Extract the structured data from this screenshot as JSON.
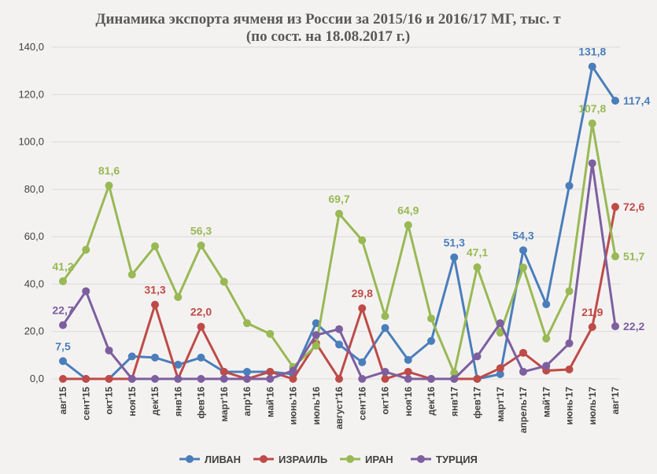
{
  "chart_data": {
    "type": "line",
    "title": "Динамика экспорта ячменя из России за  2015/16 и 2016/17 МГ, тыс. т",
    "subtitle": "(по сост. на 18.08.2017 г.)",
    "xlabel": "",
    "ylabel": "",
    "ylim": [
      0,
      140
    ],
    "yticks": [
      "0,0",
      "20,0",
      "40,0",
      "60,0",
      "80,0",
      "100,0",
      "120,0",
      "140,0"
    ],
    "grid": true,
    "legend_position": "bottom",
    "categories": [
      "авг'15",
      "сент'15",
      "окт'15",
      "ноя'15",
      "дек'15",
      "янв'16",
      "фев'16",
      "март'16",
      "апр'16",
      "май'16",
      "июнь'16",
      "июль'16",
      "август'16",
      "сент'16",
      "окт'16",
      "ноя'16",
      "дек'16",
      "янв'17",
      "фев'17",
      "март'17",
      "апрель'17",
      "май'17",
      "июнь'17",
      "июль'17",
      "авг'17"
    ],
    "series": [
      {
        "name": "ЛИВАН",
        "color": "#4a7ebb",
        "values": [
          7.5,
          0,
          0,
          9.5,
          9,
          6,
          9,
          3,
          3,
          3,
          2,
          23.5,
          14.5,
          7,
          21.5,
          8,
          16,
          51.3,
          0,
          2,
          54.3,
          31.5,
          81.5,
          131.8,
          117.4
        ],
        "labels": [
          {
            "i": 0,
            "text": "7,5"
          },
          {
            "i": 17,
            "text": "51,3"
          },
          {
            "i": 20,
            "text": "54,3"
          },
          {
            "i": 23,
            "text": "131,8"
          },
          {
            "i": 24,
            "text": "117,4"
          }
        ]
      },
      {
        "name": "ИЗРАИЛЬ",
        "color": "#be4b48",
        "values": [
          0,
          0,
          0,
          0,
          31.3,
          0,
          22.0,
          3,
          0,
          3,
          0,
          15,
          0,
          29.8,
          0,
          3,
          0,
          0,
          0,
          4.5,
          11,
          3.5,
          4,
          21.9,
          72.6
        ],
        "labels": [
          {
            "i": 4,
            "text": "31,3"
          },
          {
            "i": 6,
            "text": "22,0"
          },
          {
            "i": 13,
            "text": "29,8"
          },
          {
            "i": 23,
            "text": "21,9"
          },
          {
            "i": 24,
            "text": "72,6"
          }
        ]
      },
      {
        "name": "ИРАН",
        "color": "#98b954",
        "values": [
          41.2,
          54.5,
          81.6,
          44,
          56,
          34.5,
          56.3,
          41,
          23.5,
          19,
          5,
          14,
          69.7,
          58.5,
          26.5,
          64.9,
          25.5,
          2.5,
          47.1,
          19.5,
          47,
          17,
          37,
          107.8,
          51.7
        ],
        "labels": [
          {
            "i": 0,
            "text": "41,2"
          },
          {
            "i": 2,
            "text": "81,6"
          },
          {
            "i": 6,
            "text": "56,3"
          },
          {
            "i": 12,
            "text": "69,7"
          },
          {
            "i": 15,
            "text": "64,9"
          },
          {
            "i": 18,
            "text": "47,1"
          },
          {
            "i": 23,
            "text": "107,8"
          },
          {
            "i": 24,
            "text": "51,7"
          }
        ]
      },
      {
        "name": "ТУРЦИЯ",
        "color": "#7d5fa0",
        "values": [
          22.7,
          37,
          12,
          0,
          0,
          0,
          0,
          0,
          0,
          0,
          3.5,
          18.5,
          21,
          0,
          3,
          0,
          0,
          0,
          9.5,
          23.5,
          3,
          5.5,
          15,
          91,
          22.2
        ],
        "labels": [
          {
            "i": 0,
            "text": "22,7"
          },
          {
            "i": 24,
            "text": "22,2"
          }
        ]
      }
    ]
  }
}
